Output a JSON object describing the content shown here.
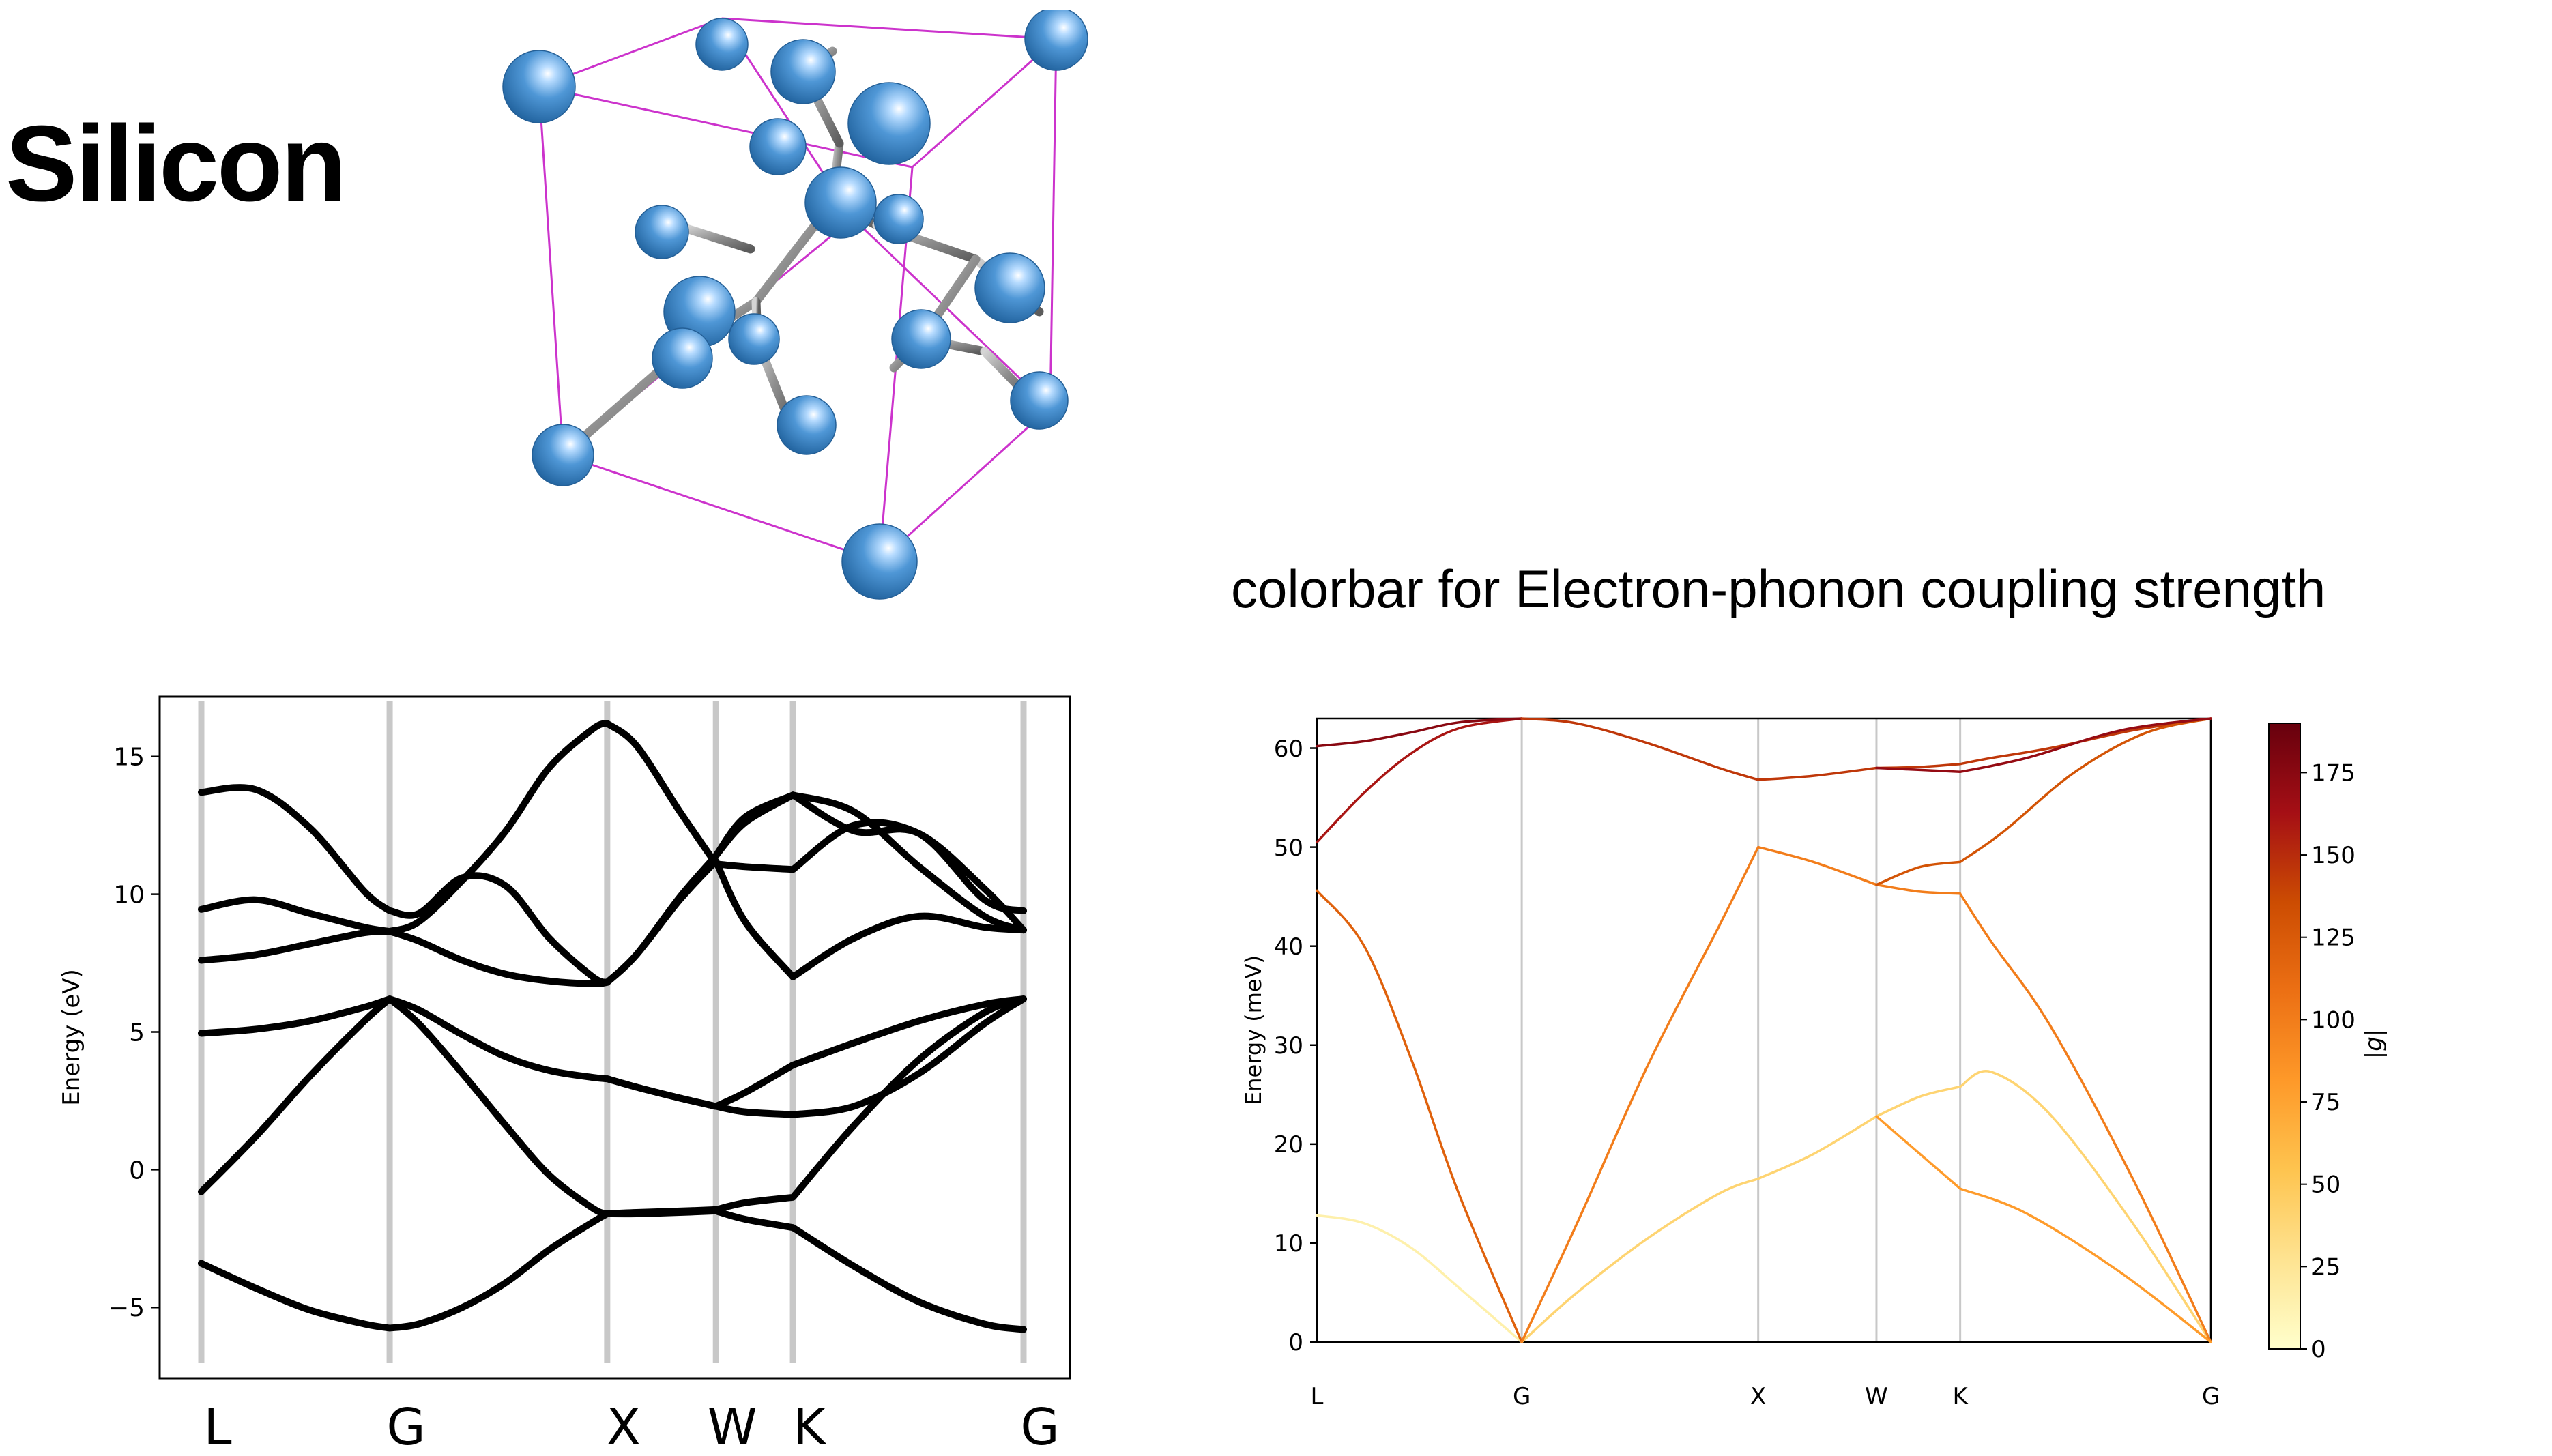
{
  "page": {
    "title": "Silicon",
    "colorbar_heading": "colorbar for Electron-phonon coupling strength"
  },
  "chart_data": [
    {
      "type": "line",
      "ylabel": "Energy (eV)",
      "ylim": [
        -7,
        17
      ],
      "yticks": [
        -5,
        0,
        5,
        10,
        15
      ],
      "ytick_labels": [
        "−5",
        "0",
        "5",
        "10",
        "15"
      ],
      "kpoint_labels": [
        "L",
        "G",
        "X",
        "W",
        "K",
        "G"
      ],
      "kpoint_positions": [
        0,
        0.866,
        1.866,
        2.366,
        2.72,
        3.78
      ],
      "line_color": "#000000",
      "vline_color": "#c8c8c8",
      "series": [
        {
          "x": [
            0,
            0.25,
            0.5,
            0.75,
            0.866,
            1.0,
            1.2,
            1.4,
            1.6,
            1.8,
            1.866,
            2.0,
            2.2,
            2.366,
            2.5,
            2.72,
            3.0,
            3.3,
            3.6,
            3.78
          ],
          "y": [
            -3.4,
            -4.3,
            -5.1,
            -5.6,
            -5.75,
            -5.6,
            -5.0,
            -4.1,
            -2.9,
            -1.9,
            -1.6,
            -1.6,
            -1.55,
            -1.5,
            -1.8,
            -2.1,
            -3.5,
            -4.8,
            -5.6,
            -5.8
          ]
        },
        {
          "x": [
            0,
            0.25,
            0.5,
            0.75,
            0.866,
            1.0,
            1.2,
            1.4,
            1.6,
            1.8,
            1.866,
            2.0,
            2.2,
            2.366,
            2.5,
            2.72,
            3.0,
            3.3,
            3.6,
            3.78
          ],
          "y": [
            -0.8,
            1.2,
            3.4,
            5.4,
            6.2,
            5.3,
            3.5,
            1.6,
            -0.2,
            -1.4,
            -1.6,
            -1.55,
            -1.5,
            -1.45,
            -1.2,
            -1.0,
            1.6,
            4.0,
            5.7,
            6.2
          ]
        },
        {
          "x": [
            0,
            0.25,
            0.5,
            0.75,
            0.866,
            1.0,
            1.2,
            1.4,
            1.6,
            1.8,
            1.866,
            2.0,
            2.2,
            2.366,
            2.5,
            2.72,
            3.0,
            3.3,
            3.6,
            3.78
          ],
          "y": [
            4.95,
            5.1,
            5.4,
            5.9,
            6.2,
            5.8,
            4.9,
            4.1,
            3.6,
            3.35,
            3.3,
            3.0,
            2.6,
            2.3,
            2.1,
            2.0,
            2.3,
            3.5,
            5.3,
            6.2
          ]
        },
        {
          "x": [
            1.866,
            2.0,
            2.2,
            2.366,
            2.5,
            2.72,
            3.0,
            3.3,
            3.6,
            3.78
          ],
          "y": [
            3.3,
            3.0,
            2.6,
            2.3,
            2.8,
            3.8,
            4.6,
            5.4,
            6.0,
            6.2
          ]
        },
        {
          "x": [
            0,
            0.25,
            0.5,
            0.75,
            0.866,
            1.0,
            1.2,
            1.4,
            1.6,
            1.8,
            1.866,
            2.0,
            2.2,
            2.366,
            2.5,
            2.72,
            3.0,
            3.3,
            3.6,
            3.78
          ],
          "y": [
            7.6,
            7.8,
            8.2,
            8.6,
            8.65,
            8.3,
            7.6,
            7.1,
            6.85,
            6.75,
            6.8,
            7.8,
            9.8,
            11.2,
            9.0,
            7.0,
            8.4,
            9.2,
            8.8,
            8.7
          ]
        },
        {
          "x": [
            0,
            0.25,
            0.5,
            0.75,
            0.866,
            1.0,
            1.2,
            1.4,
            1.6,
            1.8,
            1.866,
            2.0,
            2.2,
            2.366,
            2.5,
            2.72,
            3.0,
            3.3,
            3.6,
            3.78
          ],
          "y": [
            9.45,
            9.8,
            9.3,
            8.8,
            8.65,
            9.0,
            10.5,
            12.3,
            14.6,
            16.0,
            16.2,
            15.4,
            13.0,
            11.1,
            11.0,
            10.9,
            12.5,
            12.2,
            10.2,
            8.7
          ]
        },
        {
          "x": [
            0,
            0.25,
            0.5,
            0.75,
            0.866,
            1.0,
            1.2,
            1.4,
            1.6,
            1.8,
            1.866,
            2.0,
            2.2,
            2.366,
            2.5,
            2.72,
            3.0,
            3.3,
            3.6,
            3.78
          ],
          "y": [
            13.7,
            13.8,
            12.4,
            10.1,
            9.4,
            9.3,
            10.6,
            10.3,
            8.4,
            7.0,
            6.8,
            7.8,
            9.9,
            11.4,
            12.6,
            13.6,
            12.3,
            12.2,
            9.8,
            9.4
          ]
        },
        {
          "x": [
            2.366,
            2.5,
            2.72,
            3.0,
            3.3,
            3.6,
            3.78
          ],
          "y": [
            11.4,
            12.8,
            13.6,
            13.0,
            11.0,
            9.2,
            8.7
          ]
        }
      ]
    },
    {
      "type": "line",
      "ylabel": "Energy (meV)",
      "ylim": [
        0,
        63
      ],
      "yticks": [
        0,
        10,
        20,
        30,
        40,
        50,
        60
      ],
      "ytick_labels": [
        "0",
        "10",
        "20",
        "30",
        "40",
        "50",
        "60"
      ],
      "kpoint_labels": [
        "L",
        "G",
        "X",
        "W",
        "K",
        "G"
      ],
      "kpoint_positions": [
        0,
        0.866,
        1.866,
        2.366,
        2.72,
        3.78
      ],
      "vline_color": "#c8c8c8",
      "colorbar": {
        "label": "|g|",
        "range": [
          0,
          190
        ],
        "ticks": [
          0,
          25,
          50,
          75,
          100,
          125,
          150,
          175
        ],
        "colormap": [
          "#ffffcc",
          "#fee391",
          "#fec44f",
          "#fe9929",
          "#ec7014",
          "#cc4c02",
          "#a50f15",
          "#67000d"
        ]
      },
      "series": [
        {
          "g": 15,
          "x": [
            0,
            0.2,
            0.4,
            0.6,
            0.866
          ],
          "y": [
            12.8,
            12.0,
            9.5,
            5.5,
            0
          ]
        },
        {
          "g": 120,
          "x": [
            0,
            0.2,
            0.4,
            0.6,
            0.866
          ],
          "y": [
            45.6,
            40.0,
            28.5,
            15.0,
            0
          ]
        },
        {
          "g": 160,
          "x": [
            0,
            0.2,
            0.4,
            0.6,
            0.866
          ],
          "y": [
            50.5,
            55.5,
            59.5,
            62.0,
            63.0
          ]
        },
        {
          "g": 175,
          "x": [
            0,
            0.2,
            0.4,
            0.6,
            0.866
          ],
          "y": [
            60.2,
            60.7,
            61.6,
            62.6,
            63.0
          ]
        },
        {
          "g": 40,
          "x": [
            0.866,
            1.1,
            1.4,
            1.7,
            1.866,
            2.1,
            2.366,
            2.55,
            2.72,
            2.85,
            3.1,
            3.45,
            3.78
          ],
          "y": [
            0,
            5.0,
            10.5,
            15.0,
            16.5,
            19.0,
            22.8,
            24.8,
            25.8,
            27.3,
            23.0,
            12.0,
            0
          ]
        },
        {
          "g": 100,
          "x": [
            0.866,
            1.1,
            1.4,
            1.7,
            1.866,
            2.1,
            2.366,
            2.55,
            2.72,
            2.85,
            3.1,
            3.45,
            3.78
          ],
          "y": [
            0,
            12.0,
            28.0,
            42.0,
            50.0,
            48.5,
            46.2,
            45.5,
            45.3,
            40.5,
            32.0,
            16.5,
            0
          ]
        },
        {
          "g": 145,
          "x": [
            0.866,
            1.1,
            1.4,
            1.7,
            1.866,
            2.1,
            2.366,
            2.55,
            2.72,
            2.85,
            3.1,
            3.45,
            3.78
          ],
          "y": [
            63.0,
            62.5,
            60.5,
            58.0,
            56.8,
            57.2,
            58.0,
            58.1,
            58.4,
            59.0,
            60.0,
            61.8,
            63.0
          ]
        },
        {
          "g": 80,
          "x": [
            2.366,
            2.55,
            2.72,
            3.0,
            3.4,
            3.78
          ],
          "y": [
            22.8,
            19.0,
            15.5,
            13.0,
            7.0,
            0
          ]
        },
        {
          "g": 130,
          "x": [
            2.366,
            2.55,
            2.72,
            2.9,
            3.2,
            3.5,
            3.78
          ],
          "y": [
            46.2,
            48.0,
            48.5,
            51.5,
            57.5,
            61.5,
            63.0
          ]
        },
        {
          "g": 170,
          "x": [
            2.366,
            2.55,
            2.72,
            3.0,
            3.4,
            3.78
          ],
          "y": [
            58.0,
            57.8,
            57.6,
            59.0,
            61.8,
            63.0
          ]
        }
      ]
    }
  ]
}
